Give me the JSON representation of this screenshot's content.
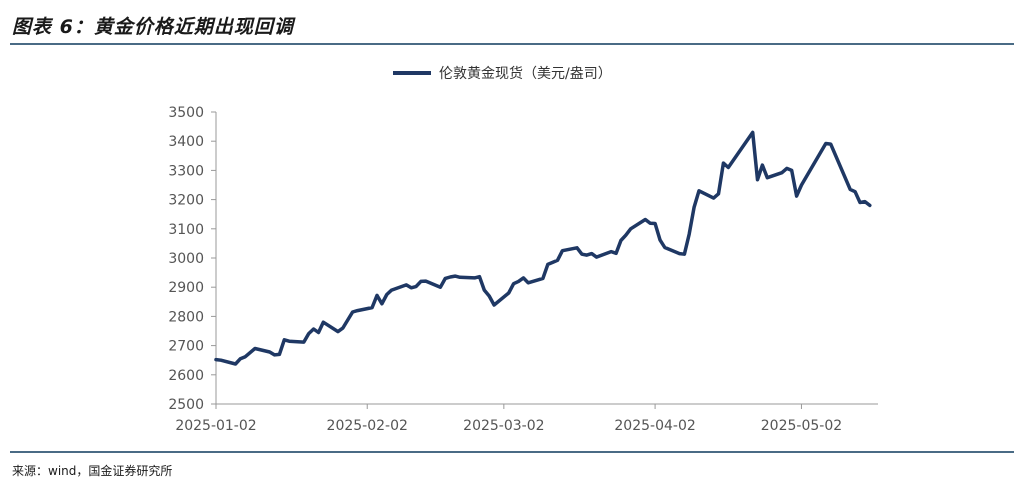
{
  "header": {
    "title": "图表 6：黄金价格近期出现回调"
  },
  "footer": {
    "source": "来源：wind，国金证券研究所"
  },
  "colors": {
    "series": "#1f3864",
    "rule": "#4a6b85",
    "axis": "#999999"
  },
  "chart_data": {
    "type": "line",
    "legend_position": "top-center",
    "grid": false,
    "ylim": [
      2500,
      3500
    ],
    "y_ticks": [
      2500,
      2600,
      2700,
      2800,
      2900,
      3000,
      3100,
      3200,
      3300,
      3400,
      3500
    ],
    "xlim": [
      "2025-01-02",
      "2025-05-14"
    ],
    "x_ticks": [
      "2025-01-02",
      "2025-02-02",
      "2025-03-02",
      "2025-04-02",
      "2025-05-02"
    ],
    "series": [
      {
        "name": "伦敦黄金现货（美元/盎司）",
        "points": [
          [
            "2025-01-02",
            2652
          ],
          [
            "2025-01-03",
            2650
          ],
          [
            "2025-01-06",
            2637
          ],
          [
            "2025-01-07",
            2655
          ],
          [
            "2025-01-08",
            2662
          ],
          [
            "2025-01-10",
            2690
          ],
          [
            "2025-01-13",
            2678
          ],
          [
            "2025-01-14",
            2668
          ],
          [
            "2025-01-15",
            2670
          ],
          [
            "2025-01-16",
            2720
          ],
          [
            "2025-01-17",
            2715
          ],
          [
            "2025-01-20",
            2712
          ],
          [
            "2025-01-21",
            2741
          ],
          [
            "2025-01-22",
            2757
          ],
          [
            "2025-01-23",
            2745
          ],
          [
            "2025-01-24",
            2780
          ],
          [
            "2025-01-27",
            2748
          ],
          [
            "2025-01-28",
            2760
          ],
          [
            "2025-01-30",
            2815
          ],
          [
            "2025-01-31",
            2820
          ],
          [
            "2025-02-03",
            2830
          ],
          [
            "2025-02-04",
            2872
          ],
          [
            "2025-02-05",
            2843
          ],
          [
            "2025-02-06",
            2875
          ],
          [
            "2025-02-07",
            2890
          ],
          [
            "2025-02-10",
            2908
          ],
          [
            "2025-02-11",
            2898
          ],
          [
            "2025-02-12",
            2902
          ],
          [
            "2025-02-13",
            2920
          ],
          [
            "2025-02-14",
            2921
          ],
          [
            "2025-02-17",
            2900
          ],
          [
            "2025-02-18",
            2930
          ],
          [
            "2025-02-19",
            2935
          ],
          [
            "2025-02-20",
            2938
          ],
          [
            "2025-02-21",
            2934
          ],
          [
            "2025-02-24",
            2932
          ],
          [
            "2025-02-25",
            2936
          ],
          [
            "2025-02-26",
            2890
          ],
          [
            "2025-02-27",
            2870
          ],
          [
            "2025-02-28",
            2839
          ],
          [
            "2025-03-03",
            2880
          ],
          [
            "2025-03-04",
            2912
          ],
          [
            "2025-03-05",
            2920
          ],
          [
            "2025-03-06",
            2932
          ],
          [
            "2025-03-07",
            2915
          ],
          [
            "2025-03-10",
            2930
          ],
          [
            "2025-03-11",
            2978
          ],
          [
            "2025-03-12",
            2985
          ],
          [
            "2025-03-13",
            2992
          ],
          [
            "2025-03-14",
            3025
          ],
          [
            "2025-03-17",
            3035
          ],
          [
            "2025-03-18",
            3013
          ],
          [
            "2025-03-19",
            3010
          ],
          [
            "2025-03-20",
            3015
          ],
          [
            "2025-03-21",
            3003
          ],
          [
            "2025-03-24",
            3022
          ],
          [
            "2025-03-25",
            3016
          ],
          [
            "2025-03-26",
            3060
          ],
          [
            "2025-03-27",
            3078
          ],
          [
            "2025-03-28",
            3100
          ],
          [
            "2025-03-31",
            3132
          ],
          [
            "2025-04-01",
            3119
          ],
          [
            "2025-04-02",
            3118
          ],
          [
            "2025-04-03",
            3062
          ],
          [
            "2025-04-04",
            3036
          ],
          [
            "2025-04-07",
            3015
          ],
          [
            "2025-04-08",
            3013
          ],
          [
            "2025-04-09",
            3082
          ],
          [
            "2025-04-10",
            3174
          ],
          [
            "2025-04-11",
            3230
          ],
          [
            "2025-04-14",
            3205
          ],
          [
            "2025-04-15",
            3220
          ],
          [
            "2025-04-16",
            3325
          ],
          [
            "2025-04-17",
            3310
          ],
          [
            "2025-04-22",
            3430
          ],
          [
            "2025-04-23",
            3268
          ],
          [
            "2025-04-24",
            3318
          ],
          [
            "2025-04-25",
            3275
          ],
          [
            "2025-04-28",
            3292
          ],
          [
            "2025-04-29",
            3307
          ],
          [
            "2025-04-30",
            3300
          ],
          [
            "2025-05-01",
            3212
          ],
          [
            "2025-05-02",
            3250
          ],
          [
            "2025-05-07",
            3392
          ],
          [
            "2025-05-08",
            3390
          ],
          [
            "2025-05-12",
            3235
          ],
          [
            "2025-05-13",
            3227
          ],
          [
            "2025-05-14",
            3190
          ],
          [
            "2025-05-15",
            3193
          ],
          [
            "2025-05-16",
            3180
          ]
        ]
      }
    ]
  }
}
